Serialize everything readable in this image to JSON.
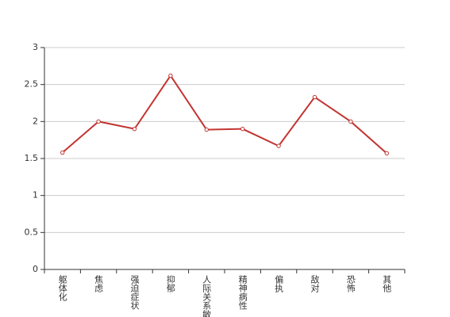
{
  "chart_data": {
    "type": "line",
    "categories": [
      "躯体化",
      "焦虑",
      "强迫症状",
      "抑郁",
      "人际关系敏感",
      "精神病性",
      "偏执",
      "敌对",
      "恐怖",
      "其他"
    ],
    "values": [
      1.58,
      2.0,
      1.9,
      2.62,
      1.89,
      1.9,
      1.67,
      2.33,
      2.0,
      1.57
    ],
    "color": "#c23531",
    "ylim": [
      0,
      3
    ],
    "yticks": [
      0,
      0.5,
      1,
      1.5,
      2,
      2.5,
      3
    ],
    "grid": true
  }
}
